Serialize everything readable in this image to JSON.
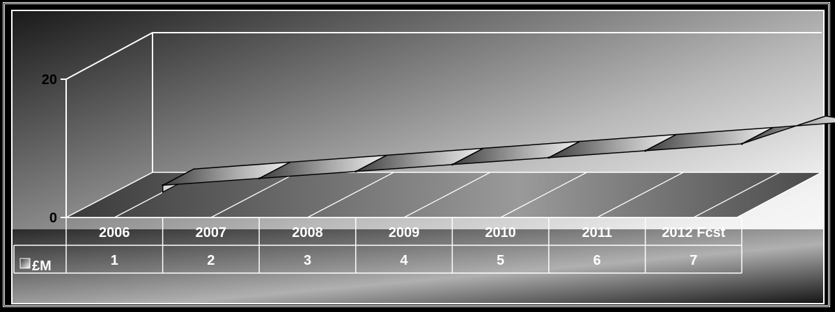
{
  "chart_data": {
    "type": "area",
    "categories": [
      "2006",
      "2007",
      "2008",
      "2009",
      "2010",
      "2011",
      "2012 Fcst"
    ],
    "series": [
      {
        "name": "£M",
        "values": [
          1,
          2,
          3,
          4,
          5,
          6,
          7
        ]
      }
    ],
    "ylim": [
      0,
      20
    ],
    "yticks": [
      "0",
      "20"
    ],
    "data_table": true,
    "legend_key": "£M",
    "grid": false,
    "view": "3d"
  }
}
